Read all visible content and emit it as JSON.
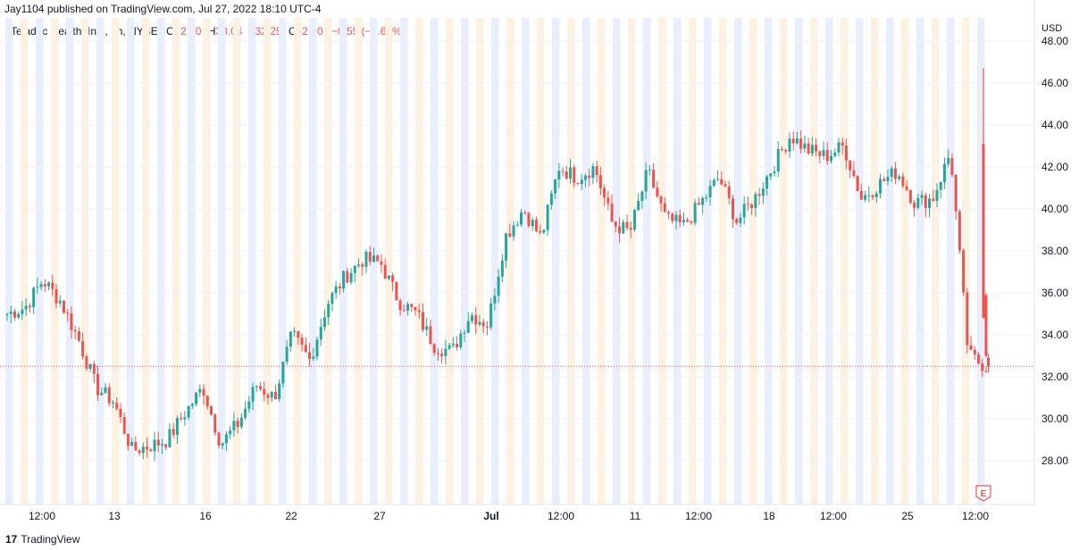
{
  "header": {
    "published": "Jay1104 published on TradingView.com, Jul 27, 2022 18:10 UTC-4"
  },
  "legend": {
    "symbol": "Teladoc Health, Inc., 1h, NYSE",
    "open_label": "O",
    "open": "32.90",
    "high_label": "H",
    "high": "33.04",
    "low_label": "L",
    "low": "32.25",
    "close_label": "C",
    "close": "32.50",
    "change": "−0.55 (−1.66%)"
  },
  "footer": {
    "logo": "17",
    "brand": "TradingView"
  },
  "colors": {
    "up": "#26a69a",
    "down": "#ef5350",
    "premarket": "#fdf2e1",
    "postmarket": "#e8eefb",
    "grid": "#f0f3fa",
    "text": "#131722"
  },
  "chart_data": {
    "type": "candlestick",
    "currency": "USD",
    "ylim": [
      26.5,
      48.5
    ],
    "y_ticks": [
      "28.00",
      "30.00",
      "32.00",
      "34.00",
      "36.00",
      "38.00",
      "40.00",
      "42.00",
      "44.00",
      "46.00",
      "48.00"
    ],
    "x_ticks": [
      "12:00",
      "13",
      "16",
      "22",
      "27",
      "Jul",
      "12:00",
      "11",
      "12:00",
      "18",
      "12:00",
      "25",
      "12:00"
    ],
    "last_price": 32.5,
    "earnings_marker": "E",
    "anchors": [
      [
        "2022-06-09",
        35.0
      ],
      [
        "2022-06-10",
        35.3
      ],
      [
        "2022-06-10",
        36.6
      ],
      [
        "2022-06-13",
        35.6
      ],
      [
        "2022-06-13",
        33.8
      ],
      [
        "2022-06-14",
        31.5
      ],
      [
        "2022-06-15",
        30.8
      ],
      [
        "2022-06-15",
        28.5
      ],
      [
        "2022-06-16",
        28.7
      ],
      [
        "2022-06-16",
        29.0
      ],
      [
        "2022-06-17",
        30.3
      ],
      [
        "2022-06-17",
        31.5
      ],
      [
        "2022-06-21",
        28.8
      ],
      [
        "2022-06-21",
        29.8
      ],
      [
        "2022-06-22",
        31.6
      ],
      [
        "2022-06-23",
        31.0
      ],
      [
        "2022-06-23",
        34.0
      ],
      [
        "2022-06-24",
        32.8
      ],
      [
        "2022-06-24",
        35.5
      ],
      [
        "2022-06-27",
        36.8
      ],
      [
        "2022-06-27",
        37.6
      ],
      [
        "2022-06-28",
        37.4
      ],
      [
        "2022-06-28",
        35.6
      ],
      [
        "2022-06-29",
        35.0
      ],
      [
        "2022-06-30",
        33.5
      ],
      [
        "2022-06-30",
        33.2
      ],
      [
        "2022-07-01",
        35.0
      ],
      [
        "2022-07-01",
        34.5
      ],
      [
        "2022-07-05",
        38.7
      ],
      [
        "2022-07-05",
        40.0
      ],
      [
        "2022-07-06",
        38.6
      ],
      [
        "2022-07-07",
        42.0
      ],
      [
        "2022-07-08",
        41.5
      ],
      [
        "2022-07-08",
        42.0
      ],
      [
        "2022-07-11",
        39.3
      ],
      [
        "2022-07-12",
        38.9
      ],
      [
        "2022-07-12",
        41.8
      ],
      [
        "2022-07-13",
        39.5
      ],
      [
        "2022-07-14",
        39.2
      ],
      [
        "2022-07-15",
        40.3
      ],
      [
        "2022-07-15",
        41.5
      ],
      [
        "2022-07-18",
        39.4
      ],
      [
        "2022-07-19",
        40.5
      ],
      [
        "2022-07-19",
        42.0
      ],
      [
        "2022-07-20",
        43.5
      ],
      [
        "2022-07-20",
        42.8
      ],
      [
        "2022-07-21",
        42.5
      ],
      [
        "2022-07-21",
        43.0
      ],
      [
        "2022-07-22",
        40.5
      ],
      [
        "2022-07-22",
        41.2
      ],
      [
        "2022-07-25",
        41.8
      ],
      [
        "2022-07-25",
        40.3
      ],
      [
        "2022-07-26",
        40.5
      ],
      [
        "2022-07-26",
        42.7
      ],
      [
        "2022-07-26",
        33.0
      ],
      [
        "2022-07-27",
        32.5
      ]
    ]
  }
}
